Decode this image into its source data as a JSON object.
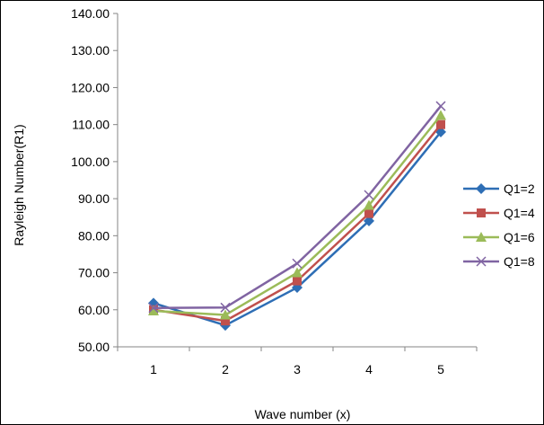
{
  "chart_data": {
    "type": "line",
    "xlabel": "Wave number (x)",
    "ylabel": "Rayleigh Number(R1)",
    "x": [
      1,
      2,
      3,
      4,
      5
    ],
    "x_tick_labels": [
      "1",
      "2",
      "3",
      "4",
      "5"
    ],
    "ylim": [
      50,
      140
    ],
    "y_tick_labels": [
      "50.00",
      "60.00",
      "70.00",
      "80.00",
      "90.00",
      "100.00",
      "110.00",
      "120.00",
      "130.00",
      "140.00"
    ],
    "grid": false,
    "legend_position": "right",
    "series": [
      {
        "name": "Q1=2",
        "values": [
          61.8,
          55.8,
          66.0,
          84.0,
          108.0
        ],
        "color": "#2E6EB5",
        "marker": "diamond"
      },
      {
        "name": "Q1=4",
        "values": [
          60.0,
          57.0,
          67.8,
          86.0,
          110.0
        ],
        "color": "#C0504D",
        "marker": "square"
      },
      {
        "name": "Q1=6",
        "values": [
          59.7,
          58.6,
          70.0,
          88.2,
          112.5
        ],
        "color": "#9BBB59",
        "marker": "triangle"
      },
      {
        "name": "Q1=8",
        "values": [
          60.5,
          60.6,
          72.5,
          91.0,
          115.0
        ],
        "color": "#8064A2",
        "marker": "x"
      }
    ]
  }
}
